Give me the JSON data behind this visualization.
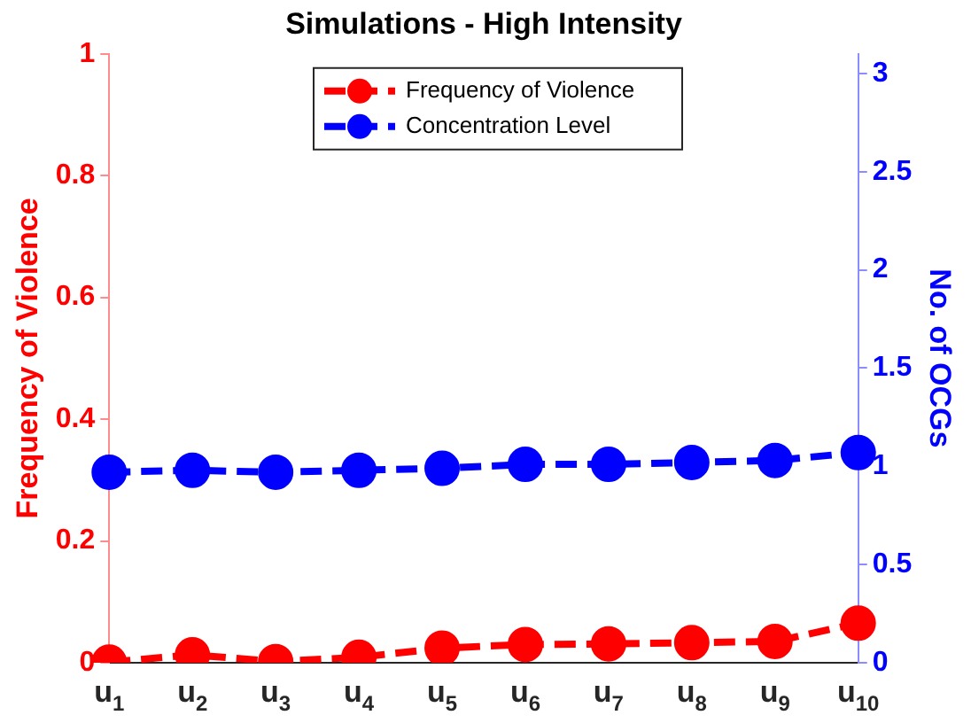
{
  "chart_data": {
    "type": "line",
    "title": "Simulations - High Intensity",
    "ylabel": "Frequency of Violence",
    "y2label": "No. of OCGs",
    "categories": [
      "u$_{1}$",
      "u$_{2}$",
      "u$_{3}$",
      "u$_{4}$",
      "u$_{5}$",
      "u$_{6}$",
      "u$_{7}$",
      "u$_{8}$",
      "u$_{9}$",
      "u$_{10}$"
    ],
    "series": [
      {
        "name": "Frequency of Violence",
        "color": "#ff0000",
        "values": [
          0.001,
          0.013,
          0.002,
          0.009,
          0.024,
          0.03,
          0.031,
          0.033,
          0.035,
          0.065
        ]
      },
      {
        "name": "Concentration Level",
        "color": "#0000ff",
        "axis": "y2",
        "values": [
          0.97,
          0.98,
          0.97,
          0.98,
          0.99,
          1.01,
          1.01,
          1.02,
          1.03,
          1.07
        ]
      }
    ],
    "ylim": [
      0,
      1
    ],
    "yticks": [
      0,
      0.2,
      0.4,
      0.6,
      0.8,
      1
    ],
    "y2lim": [
      0,
      3.1
    ],
    "y2ticks": [
      0,
      0.5,
      1,
      1.5,
      2,
      2.5,
      3
    ],
    "grid": false,
    "legend": "top",
    "marker": "circle",
    "line_style": "dashed"
  }
}
